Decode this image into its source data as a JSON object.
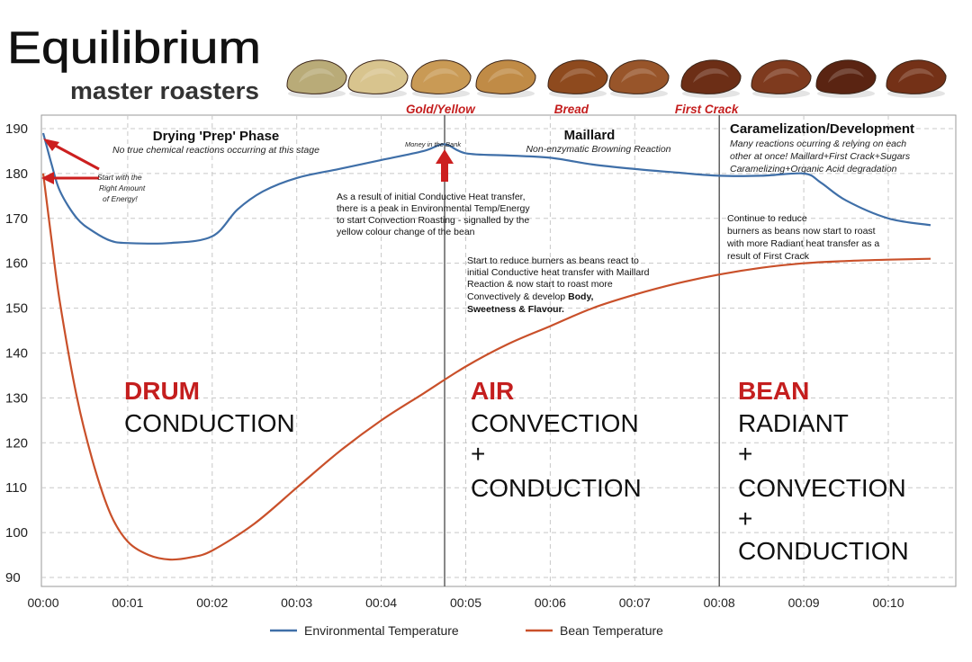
{
  "logo": {
    "wordmark": "Equilibrium",
    "tagline": "master roasters"
  },
  "bean_colors": [
    "#b9ab78",
    "#d8c48e",
    "#c99a55",
    "#c08b46",
    "#8e4a1e",
    "#98552a",
    "#6c2e16",
    "#7e3a1e",
    "#5a2412",
    "#743117"
  ],
  "stage_labels": [
    {
      "text": "Gold/Yellow",
      "x": 4.7
    },
    {
      "text": "Bread",
      "x": 6.25
    },
    {
      "text": "First Crack",
      "x": 7.85
    }
  ],
  "phases": {
    "drying": {
      "title": "Drying 'Prep' Phase",
      "subtitle": "No true chemical reactions occurring at this stage"
    },
    "maillard": {
      "title": "Maillard",
      "subtitle": "Non-enzymatic Browning Reaction"
    },
    "caramel": {
      "title": "Caramelization/Development",
      "subtitle_lines": [
        "Many reactions ocurring & relying on each",
        "other at once! Maillard+First Crack+Sugars",
        "Caramelizing+Organic Acid degradation"
      ]
    }
  },
  "annotations": {
    "energy_lines": [
      "Start with the",
      "Right Amount",
      "of Energy!"
    ],
    "money": "Money in the Bank",
    "peak_lines": [
      "As a result of initial Conductive Heat transfer,",
      "there is a peak in Environmental Temp/Energy",
      "to start Convection Roasting - signalled by the",
      "yellow colour change of the bean"
    ],
    "reduce_lines": [
      "Start to reduce burners as beans react to",
      "initial Conductive heat transfer with Maillard",
      "Reaction & now start to roast more",
      "Convectively & develop "
    ],
    "reduce_bold_1": "Body,",
    "reduce_bold_2": "Sweetness & Flavour.",
    "continue_lines": [
      "Continue to reduce",
      "burners as beans now start to roast",
      "with more Radiant heat transfer as a",
      "result of First Crack"
    ]
  },
  "big_labels": {
    "drum": {
      "head": "DRUM",
      "lines": [
        "CONDUCTION"
      ]
    },
    "air": {
      "head": "AIR",
      "lines": [
        "CONVECTION",
        "+",
        "CONDUCTION"
      ]
    },
    "bean": {
      "head": "BEAN",
      "lines": [
        "RADIANT",
        "+",
        "CONVECTION",
        "+",
        "CONDUCTION"
      ]
    }
  },
  "chart_data": {
    "type": "line",
    "title": "",
    "xlabel": "",
    "ylabel": "",
    "xlim": [
      0,
      10.8
    ],
    "ylim": [
      88,
      193
    ],
    "yticks": [
      90,
      100,
      110,
      120,
      130,
      140,
      150,
      160,
      170,
      180,
      190
    ],
    "xticks": [
      {
        "v": 0,
        "label": "00:00"
      },
      {
        "v": 1,
        "label": "00:01"
      },
      {
        "v": 2,
        "label": "00:02"
      },
      {
        "v": 3,
        "label": "00:03"
      },
      {
        "v": 4,
        "label": "00:04"
      },
      {
        "v": 5,
        "label": "00:05"
      },
      {
        "v": 6,
        "label": "00:06"
      },
      {
        "v": 7,
        "label": "00:07"
      },
      {
        "v": 8,
        "label": "00:08"
      },
      {
        "v": 9,
        "label": "00:09"
      },
      {
        "v": 10,
        "label": "00:10"
      }
    ],
    "grid": true,
    "phase_dividers": [
      4.75,
      8.0
    ],
    "legend_position": "bottom",
    "series": [
      {
        "name": "Environmental Temperature",
        "color": "#3f6fa8",
        "x": [
          0,
          0.1,
          0.2,
          0.4,
          0.6,
          0.8,
          1.0,
          1.5,
          2.0,
          2.3,
          2.6,
          3.0,
          3.5,
          4.0,
          4.5,
          4.75,
          5.0,
          5.5,
          6.0,
          6.5,
          7.0,
          7.5,
          8.0,
          8.5,
          9.0,
          9.2,
          9.5,
          10.0,
          10.5
        ],
        "y": [
          189,
          182,
          176,
          170,
          167,
          165,
          164.5,
          164.5,
          166,
          172,
          176,
          179,
          181,
          183,
          185,
          186.5,
          184.5,
          184,
          183.5,
          182,
          181,
          180.2,
          179.5,
          179.5,
          180,
          178,
          174,
          170,
          168.5
        ]
      },
      {
        "name": "Bean Temperature",
        "color": "#c9502a",
        "x": [
          0,
          0.1,
          0.2,
          0.4,
          0.6,
          0.8,
          1.0,
          1.25,
          1.5,
          1.75,
          2.0,
          2.5,
          3.0,
          3.5,
          4.0,
          4.5,
          5.0,
          5.5,
          6.0,
          6.5,
          7.0,
          7.5,
          8.0,
          8.5,
          9.0,
          9.5,
          10.0,
          10.5
        ],
        "y": [
          180,
          165,
          151,
          130,
          115,
          104,
          98,
          95,
          94,
          94.5,
          96,
          102,
          110,
          118,
          125,
          131,
          137,
          142,
          146,
          150,
          153,
          155.5,
          157.5,
          159,
          160,
          160.5,
          160.8,
          161
        ]
      }
    ]
  }
}
